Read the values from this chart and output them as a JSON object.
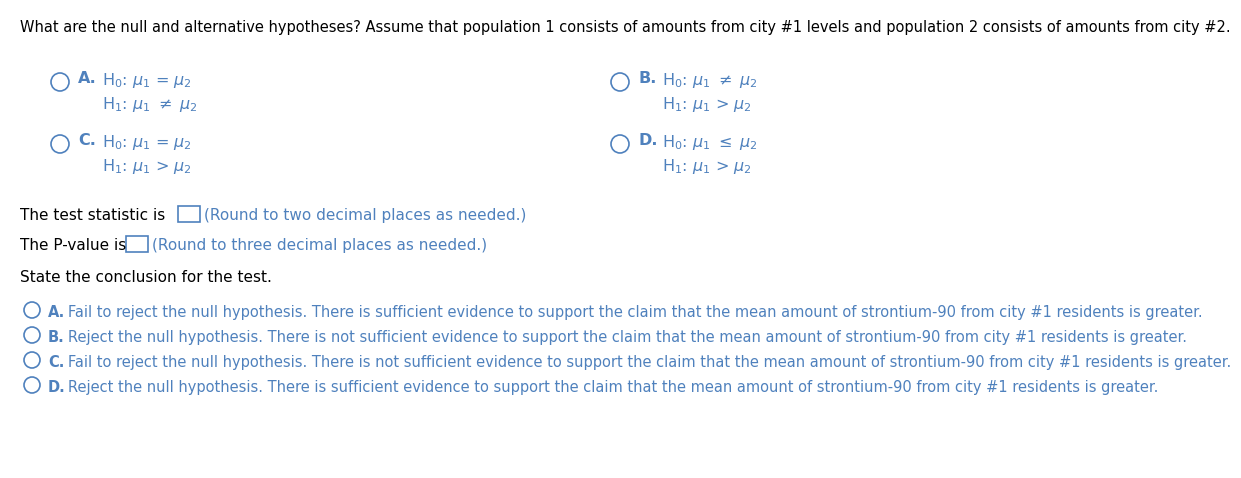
{
  "bg_color": "#ffffff",
  "text_color": "#000000",
  "blue_color": "#4F81BD",
  "header": "What are the null and alternative hypotheses? Assume that population 1 consists of amounts from city #1 levels and population 2 consists of amounts from city #2.",
  "test_stat_line": "The test statistic is",
  "test_stat_hint": "(Round to two decimal places as needed.)",
  "pvalue_line": "The P-value is",
  "pvalue_hint": "(Round to three decimal places as needed.)",
  "conclusion_header": "State the conclusion for the test.",
  "options_conc": [
    {
      "label": "A.",
      "text": "Fail to reject the null hypothesis. There is sufficient evidence to support the claim that the mean amount of strontium-90 from city #1 residents is greater."
    },
    {
      "label": "B.",
      "text": "Reject the null hypothesis. There is not sufficient evidence to support the claim that the mean amount of strontium-90 from city #1 residents is greater."
    },
    {
      "label": "C.",
      "text": "Fail to reject the null hypothesis. There is not sufficient evidence to support the claim that the mean amount of strontium-90 from city #1 residents is greater."
    },
    {
      "label": "D.",
      "text": "Reject the null hypothesis. There is sufficient evidence to support the claim that the mean amount of strontium-90 from city #1 residents is greater."
    }
  ],
  "hyp_A_line1": "H$_0$: $\\mu_1$ = $\\mu_2$",
  "hyp_A_line2": "H$_1$: $\\mu_1$ $\\neq$ $\\mu_2$",
  "hyp_B_line1": "H$_0$: $\\mu_1$ $\\neq$ $\\mu_2$",
  "hyp_B_line2": "H$_1$: $\\mu_1$ > $\\mu_2$",
  "hyp_C_line1": "H$_0$: $\\mu_1$ = $\\mu_2$",
  "hyp_C_line2": "H$_1$: $\\mu_1$ > $\\mu_2$",
  "hyp_D_line1": "H$_0$: $\\mu_1$ $\\leq$ $\\mu_2$",
  "hyp_D_line2": "H$_1$: $\\mu_1$ > $\\mu_2$"
}
